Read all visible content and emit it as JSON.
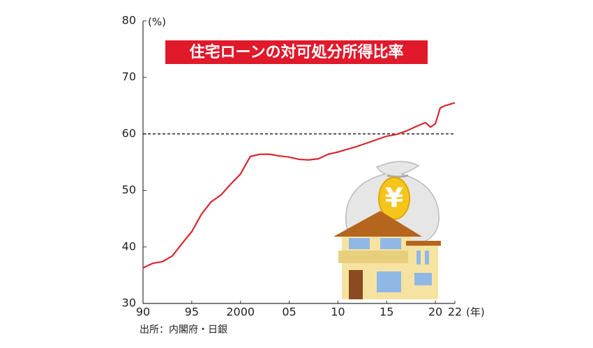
{
  "chart_data": {
    "type": "line",
    "title": "住宅ローンの対可処分所得比率",
    "y_unit": "(%)",
    "x_unit": "(年)",
    "source": "出所：内閣府・日銀",
    "x": [
      1990,
      1991,
      1992,
      1993,
      1994,
      1995,
      1996,
      1997,
      1998,
      1999,
      2000,
      2001,
      2002,
      2003,
      2004,
      2005,
      2006,
      2007,
      2008,
      2009,
      2010,
      2011,
      2012,
      2013,
      2014,
      2015,
      2016,
      2017,
      2018,
      2019,
      2019.5,
      2020,
      2020.5,
      2021,
      2022
    ],
    "series": [
      {
        "color": "#d7282f",
        "values": [
          36.3,
          37.1,
          37.4,
          38.4,
          40.6,
          42.7,
          45.8,
          48.0,
          49.2,
          51.1,
          52.9,
          56.0,
          56.4,
          56.4,
          56.1,
          55.9,
          55.5,
          55.4,
          55.6,
          56.4,
          56.8,
          57.3,
          57.8,
          58.4,
          59.0,
          59.6,
          59.9,
          60.5,
          61.3,
          62.0,
          61.2,
          61.8,
          64.6,
          65.0,
          65.5
        ]
      }
    ],
    "xlim": [
      1990,
      2022
    ],
    "xticks": [
      {
        "value": 1990,
        "label": "90"
      },
      {
        "value": 1995,
        "label": "95"
      },
      2000,
      {
        "value": 2005,
        "label": "05"
      },
      {
        "value": 2010,
        "label": "10"
      },
      {
        "value": 2015,
        "label": "15"
      },
      {
        "value": 2020,
        "label": "20"
      },
      {
        "value": 2022,
        "label": "22"
      }
    ],
    "ylim": [
      30,
      80
    ],
    "yticks": [
      30,
      40,
      50,
      60,
      70,
      80
    ],
    "reference_line": 60
  },
  "illustration_label": "¥"
}
